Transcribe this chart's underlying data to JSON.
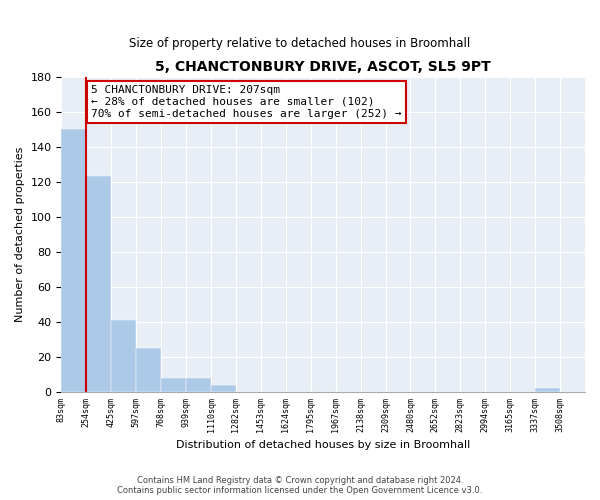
{
  "title": "5, CHANCTONBURY DRIVE, ASCOT, SL5 9PT",
  "subtitle": "Size of property relative to detached houses in Broomhall",
  "xlabel": "Distribution of detached houses by size in Broomhall",
  "ylabel": "Number of detached properties",
  "bar_color": "#adc9e8",
  "highlight_color": "#cc0000",
  "background_color": "#e8eef5",
  "tick_labels": [
    "83sqm",
    "254sqm",
    "425sqm",
    "597sqm",
    "768sqm",
    "939sqm",
    "1110sqm",
    "1282sqm",
    "1453sqm",
    "1624sqm",
    "1795sqm",
    "1967sqm",
    "2138sqm",
    "2309sqm",
    "2480sqm",
    "2652sqm",
    "2823sqm",
    "2994sqm",
    "3165sqm",
    "3337sqm",
    "3508sqm"
  ],
  "bar_heights": [
    150,
    123,
    41,
    25,
    8,
    8,
    4,
    0,
    0,
    0,
    0,
    0,
    0,
    0,
    0,
    0,
    0,
    0,
    0,
    2,
    0
  ],
  "ylim": [
    0,
    180
  ],
  "yticks": [
    0,
    20,
    40,
    60,
    80,
    100,
    120,
    140,
    160,
    180
  ],
  "annotation_line1": "5 CHANCTONBURY DRIVE: 207sqm",
  "annotation_line2": "← 28% of detached houses are smaller (102)",
  "annotation_line3": "70% of semi-detached houses are larger (252) →",
  "footer_line1": "Contains HM Land Registry data © Crown copyright and database right 2024.",
  "footer_line2": "Contains public sector information licensed under the Open Government Licence v3.0."
}
